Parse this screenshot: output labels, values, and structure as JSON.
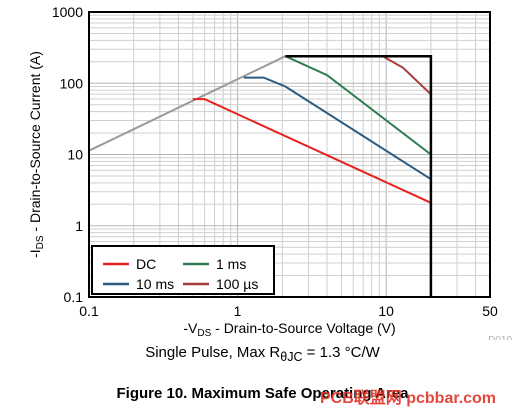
{
  "chart_data": {
    "type": "line",
    "x_scale": "log",
    "y_scale": "log",
    "xlim": [
      0.1,
      50
    ],
    "ylim": [
      0.1,
      1000
    ],
    "x_ticks": [
      {
        "value": 0.1,
        "label": "0.1"
      },
      {
        "value": 1,
        "label": "1"
      },
      {
        "value": 10,
        "label": "10"
      },
      {
        "value": 50,
        "label": "50"
      }
    ],
    "y_ticks": [
      {
        "value": 0.1,
        "label": "0.1"
      },
      {
        "value": 1,
        "label": "1"
      },
      {
        "value": 10,
        "label": "10"
      },
      {
        "value": 100,
        "label": "100"
      },
      {
        "value": 1000,
        "label": "1000"
      }
    ],
    "xlabel": {
      "pre": "-V",
      "sub": "DS",
      "post": " - Drain-to-Source Voltage (V)"
    },
    "ylabel": {
      "pre": "-I",
      "sub": "DS",
      "post": " - Drain-to-Source Current (A)"
    },
    "grid": true,
    "legend_position": "bottom-left",
    "colors": {
      "dc": "#e8211f",
      "ms10": "#2b5c80",
      "ms1": "#2e7d52",
      "us100": "#a63b3b",
      "limit_line": "#999999",
      "boundary": "#000000"
    },
    "limit_line": {
      "name": "",
      "points": [
        [
          0.1,
          11.3
        ],
        [
          2.1,
          240
        ]
      ]
    },
    "boundary": {
      "points": [
        [
          2.1,
          240
        ],
        [
          20,
          240
        ],
        [
          20,
          0.1
        ]
      ]
    },
    "series": [
      {
        "key": "us100",
        "name": "100 µs",
        "points": [
          [
            2.1,
            240
          ],
          [
            9.5,
            240
          ],
          [
            13,
            165
          ],
          [
            20,
            70
          ]
        ]
      },
      {
        "key": "ms1",
        "name": "1 ms",
        "points": [
          [
            2.1,
            240
          ],
          [
            4,
            130
          ],
          [
            20,
            10
          ]
        ]
      },
      {
        "key": "ms10",
        "name": "10 ms",
        "points": [
          [
            1.1,
            120
          ],
          [
            1.5,
            120
          ],
          [
            2.1,
            90
          ],
          [
            20,
            4.5
          ]
        ]
      },
      {
        "key": "dc",
        "name": "DC",
        "points": [
          [
            0.5,
            60
          ],
          [
            0.6,
            60
          ],
          [
            20,
            2.1
          ]
        ]
      }
    ],
    "legend_order": [
      {
        "key": "dc",
        "label": "DC"
      },
      {
        "key": "ms1",
        "label": "1 ms"
      },
      {
        "key": "ms10",
        "label": "10 ms"
      },
      {
        "key": "us100",
        "label": "100 µs"
      }
    ]
  },
  "figure_code": "D010",
  "note": {
    "pre": "Single Pulse, Max R",
    "sub": "θJC",
    "post": " = 1.3 °C/W"
  },
  "caption": "Figure 10. Maximum Safe Operating Area",
  "watermark": "PCB联盟网 pcbbar.com"
}
